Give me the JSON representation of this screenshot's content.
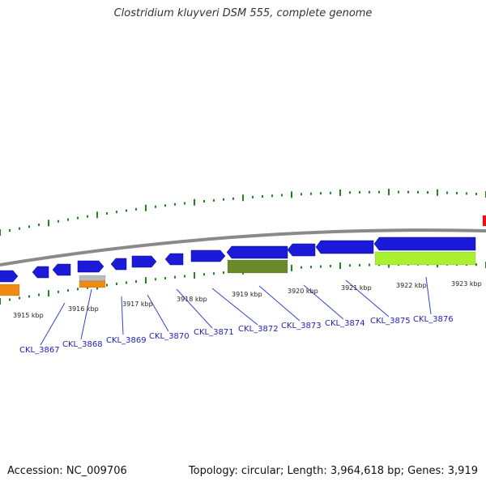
{
  "title": "Clostridium kluyveri DSM 555, complete genome",
  "footer": {
    "accession": "Accession: NC_009706",
    "summary": "Topology: circular; Length: 3,964,618 bp; Genes: 3,919"
  },
  "colors": {
    "backbone": "#8a8a8a",
    "cds": "#1a1ad8",
    "orange": "#f08a10",
    "gray": "#bbbbbb",
    "olive": "#6a8a2a",
    "lime": "#a8f030",
    "red": "#ee1111",
    "tick": "#1a8a1a",
    "leader": "#3344cc"
  },
  "kbp_labels": [
    "3915 kbp",
    "3916 kbp",
    "3917 kbp",
    "3918 kbp",
    "3919 kbp",
    "3920 kbp",
    "3921 kbp",
    "3922 kbp",
    "3923 kbp"
  ],
  "gene_labels": [
    "CKL_3867",
    "CKL_3868",
    "CKL_3869",
    "CKL_3870",
    "CKL_3871",
    "CKL_3872",
    "CKL_3873",
    "CKL_3874",
    "CKL_3875",
    "CKL_3876"
  ]
}
